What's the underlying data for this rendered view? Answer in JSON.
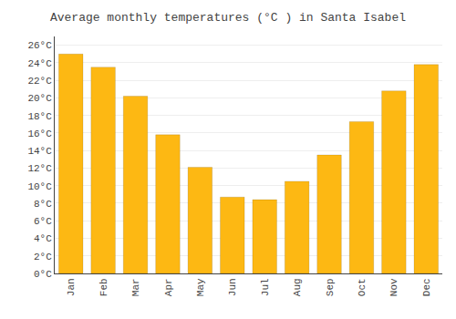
{
  "chart_data": {
    "type": "bar",
    "title": "Average monthly temperatures (°C ) in Santa Isabel",
    "categories": [
      "Jan",
      "Feb",
      "Mar",
      "Apr",
      "May",
      "Jun",
      "Jul",
      "Aug",
      "Sep",
      "Oct",
      "Nov",
      "Dec"
    ],
    "values": [
      25.0,
      23.5,
      20.2,
      15.8,
      12.1,
      8.7,
      8.4,
      10.5,
      13.5,
      17.3,
      20.8,
      23.8
    ],
    "color": "#FDB813",
    "ylim": [
      0,
      27
    ],
    "yticks": [
      {
        "value": 0,
        "label": "0°C"
      },
      {
        "value": 2,
        "label": "2°C"
      },
      {
        "value": 4,
        "label": "4°C"
      },
      {
        "value": 6,
        "label": "6°C"
      },
      {
        "value": 8,
        "label": "8°C"
      },
      {
        "value": 10,
        "label": "10°C"
      },
      {
        "value": 12,
        "label": "12°C"
      },
      {
        "value": 14,
        "label": "14°C"
      },
      {
        "value": 16,
        "label": "16°C"
      },
      {
        "value": 18,
        "label": "18°C"
      },
      {
        "value": 20,
        "label": "20°C"
      },
      {
        "value": 22,
        "label": "22°C"
      },
      {
        "value": 24,
        "label": "24°C"
      },
      {
        "value": 26,
        "label": "26°C"
      }
    ],
    "grid": true
  }
}
